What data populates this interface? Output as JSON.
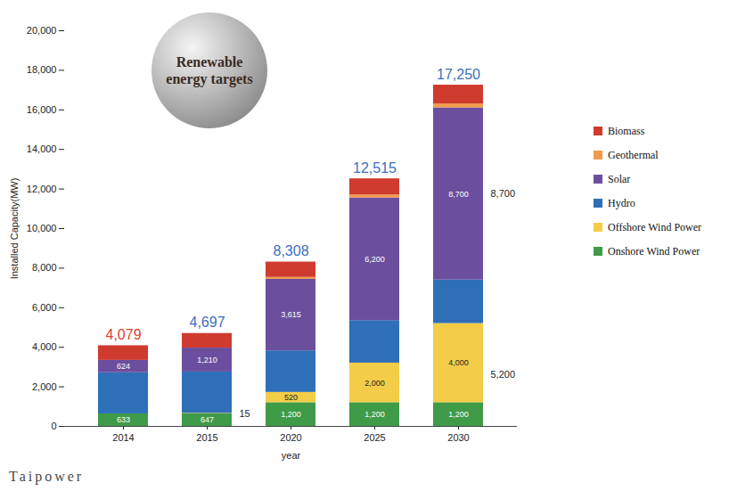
{
  "chart_data": {
    "type": "bar",
    "title": "Renewable energy targets",
    "x_label": "year",
    "y_label": "Installed Capacity(MW)",
    "logo": "Taipower",
    "stacked": true,
    "grid": false,
    "legend": "right",
    "data_labels": true,
    "categories": [
      "2014",
      "2015",
      "2020",
      "2025",
      "2030"
    ],
    "ylim": [
      0,
      20000
    ],
    "yticks": [
      0,
      {
        "value": 2000,
        "label": "2,000"
      },
      {
        "value": 4000,
        "label": "4,000"
      },
      {
        "value": 6000,
        "label": "6,000"
      },
      {
        "value": 8000,
        "label": "8,000"
      },
      {
        "value": 10000,
        "label": "10,000"
      },
      {
        "value": 12000,
        "label": "12,000"
      },
      {
        "value": 14000,
        "label": "14,000"
      },
      {
        "value": 16000,
        "label": "16,000"
      },
      {
        "value": 18000,
        "label": "18,000"
      },
      {
        "value": 20000,
        "label": "20,000"
      }
    ],
    "series": [
      {
        "name": "Biomass",
        "color": "#cf3b2f",
        "values": [
          741,
          736,
          773,
          815,
          950
        ]
      },
      {
        "name": "Geothermal",
        "color": "#f39a4a",
        "values": [
          0,
          0,
          100,
          150,
          200
        ]
      },
      {
        "name": "Solar",
        "color": "#6b4f9e",
        "values": [
          624,
          1210,
          3615,
          6200,
          8700
        ],
        "value_labels": [
          "624",
          "1,210",
          "3,615",
          "6,200",
          "8,700"
        ]
      },
      {
        "name": "Hydro",
        "color": "#2f6fb8",
        "values": [
          2081,
          2089,
          2100,
          2150,
          2200
        ]
      },
      {
        "name": "Offshore Wind Power",
        "color": "#f3cd47",
        "values": [
          0,
          15,
          520,
          2000,
          4000
        ],
        "value_labels": [
          null,
          null,
          "520",
          "2,000",
          "4,000"
        ]
      },
      {
        "name": "Onshore Wind Power",
        "color": "#3f9b48",
        "values": [
          633,
          647,
          1200,
          1200,
          1200
        ],
        "value_labels": [
          "633",
          "647",
          "1,200",
          "1,200",
          "1,200"
        ]
      }
    ],
    "totals": {
      "values": [
        4079,
        4697,
        8308,
        12515,
        17250
      ],
      "labels": [
        "4,079",
        "4,697",
        "8,308",
        "12,515",
        "17,250"
      ],
      "colors": [
        "#e0402c",
        "#3b6fc2",
        "#3b6fc2",
        "#3b6fc2",
        "#3b6fc2"
      ]
    },
    "annotations": [
      {
        "text": "15",
        "x": "2015",
        "series": [
          "Offshore Wind Power"
        ]
      },
      {
        "text": "8,700",
        "x": "2030",
        "series": [
          "Solar"
        ]
      },
      {
        "text": "5,200",
        "x": "2030",
        "series": [
          "Offshore Wind Power",
          "Onshore Wind Power"
        ]
      }
    ]
  }
}
